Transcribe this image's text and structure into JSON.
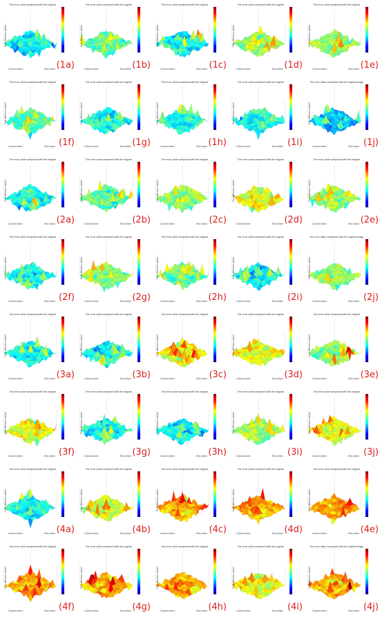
{
  "chart_data": {
    "type": "surface-grid",
    "colors": {
      "low": "#0000c8",
      "mid": "#7fff00",
      "high": "#e00000"
    },
    "panels": [
      {
        "label": "(1a)",
        "title": "The error value compared with the original",
        "xlabel": "Column index",
        "ylabel": "Row index",
        "zlabel": "Pixel difference values",
        "style": "cyan"
      },
      {
        "label": "(1b)",
        "title": "The error value compared with the original",
        "xlabel": "Column index",
        "ylabel": "Row index",
        "zlabel": "Pixel difference values",
        "style": "mixed"
      },
      {
        "label": "(1c)",
        "title": "The error value compared with the original",
        "xlabel": "Column index",
        "ylabel": "Row index",
        "zlabel": "Pixel difference values",
        "style": "cyan"
      },
      {
        "label": "(1d)",
        "title": "The error value compared with the original",
        "xlabel": "Column index",
        "ylabel": "Row index",
        "zlabel": "Pixel difference values",
        "style": "green"
      },
      {
        "label": "(1e)",
        "title": "The error value compared with the original",
        "xlabel": "Column index",
        "ylabel": "Row index",
        "zlabel": "Pixel difference values",
        "style": "green"
      },
      {
        "label": "(1f)",
        "title": "The error value compared with the original",
        "xlabel": "Column index",
        "ylabel": "Row index",
        "zlabel": "Pixel difference values",
        "style": "mixed"
      },
      {
        "label": "(1g)",
        "title": "The error value compared with the original",
        "xlabel": "Column index",
        "ylabel": "Row index",
        "zlabel": "Pixel difference values",
        "style": "cyan"
      },
      {
        "label": "(1h)",
        "title": "The error value compared with the original",
        "xlabel": "Column index",
        "ylabel": "Row index",
        "zlabel": "Pixel difference values",
        "style": "cyan"
      },
      {
        "label": "(1i)",
        "title": "The error value compared with the original",
        "xlabel": "Column index",
        "ylabel": "Row index",
        "zlabel": "Pixel difference values",
        "style": "cyan"
      },
      {
        "label": "(1j)",
        "title": "The error value compared with the original image",
        "xlabel": "Column index",
        "ylabel": "Row index",
        "zlabel": "Pixel difference values",
        "style": "blue"
      },
      {
        "label": "(2a)",
        "title": "The error value compared with the original",
        "xlabel": "Column index",
        "ylabel": "Row index",
        "zlabel": "Pixel difference values",
        "style": "cyan"
      },
      {
        "label": "(2b)",
        "title": "The error value compared with the original",
        "xlabel": "Column index",
        "ylabel": "Row index",
        "zlabel": "Pixel difference values",
        "style": "mixed"
      },
      {
        "label": "(2c)",
        "title": "The error value compared with the original",
        "xlabel": "Column index",
        "ylabel": "Row index",
        "zlabel": "Pixel difference values",
        "style": "green"
      },
      {
        "label": "(2d)",
        "title": "The error value compared with the original",
        "xlabel": "Column index",
        "ylabel": "Row index",
        "zlabel": "Pixel difference values",
        "style": "yellow"
      },
      {
        "label": "(2e)",
        "title": "The error value compared with the original",
        "xlabel": "Column index",
        "ylabel": "Row index",
        "zlabel": "Pixel difference values",
        "style": "green"
      },
      {
        "label": "(2f)",
        "title": "The error value compared with the original",
        "xlabel": "Column index",
        "ylabel": "Row index",
        "zlabel": "Pixel difference values",
        "style": "cyan"
      },
      {
        "label": "(2g)",
        "title": "The error value compared with the original",
        "xlabel": "Column index",
        "ylabel": "Row index",
        "zlabel": "Pixel difference values",
        "style": "green"
      },
      {
        "label": "(2h)",
        "title": "The error value compared with the original",
        "xlabel": "Column index",
        "ylabel": "Row index",
        "zlabel": "Pixel difference values",
        "style": "mixed"
      },
      {
        "label": "(2i)",
        "title": "The error value compared with the original",
        "xlabel": "Column index",
        "ylabel": "Row index",
        "zlabel": "Pixel difference values",
        "style": "cyan"
      },
      {
        "label": "(2j)",
        "title": "The error value compared with the original image",
        "xlabel": "Column index",
        "ylabel": "Row index",
        "zlabel": "Pixel difference values",
        "style": "green"
      },
      {
        "label": "(3a)",
        "title": "The error value compared with the original",
        "xlabel": "Column index",
        "ylabel": "Row index",
        "zlabel": "Pixel difference values",
        "style": "cyan"
      },
      {
        "label": "(3b)",
        "title": "The error value compared with the original",
        "xlabel": "Column index",
        "ylabel": "Row index",
        "zlabel": "Pixel difference values",
        "style": "cyan"
      },
      {
        "label": "(3c)",
        "title": "The error value compared with the original",
        "xlabel": "Column index",
        "ylabel": "Row index",
        "zlabel": "Pixel difference values",
        "style": "yellow"
      },
      {
        "label": "(3d)",
        "title": "The error value compared with the original",
        "xlabel": "Column index",
        "ylabel": "Row index",
        "zlabel": "Pixel difference values",
        "style": "yellow"
      },
      {
        "label": "(3e)",
        "title": "The error value compared with the original",
        "xlabel": "Column index",
        "ylabel": "Row index",
        "zlabel": "Pixel difference values",
        "style": "green"
      },
      {
        "label": "(3f)",
        "title": "The error value compared with the original",
        "xlabel": "Column index",
        "ylabel": "Row index",
        "zlabel": "Pixel difference values",
        "style": "yellow"
      },
      {
        "label": "(3g)",
        "title": "The error value compared with the original",
        "xlabel": "Column index",
        "ylabel": "Row index",
        "zlabel": "Pixel difference values",
        "style": "cyan"
      },
      {
        "label": "(3h)",
        "title": "The error value compared with the original",
        "xlabel": "Column index",
        "ylabel": "Row index",
        "zlabel": "Pixel difference values",
        "style": "cyan"
      },
      {
        "label": "(3i)",
        "title": "The error value compared with the original",
        "xlabel": "Column index",
        "ylabel": "Row index",
        "zlabel": "Pixel difference values",
        "style": "green"
      },
      {
        "label": "(3j)",
        "title": "The error value compared with the original",
        "xlabel": "Column index",
        "ylabel": "Row index",
        "zlabel": "Pixel difference values",
        "style": "yellow"
      },
      {
        "label": "(4a)",
        "title": "The error value compared with the original",
        "xlabel": "Column index",
        "ylabel": "Row index",
        "zlabel": "Pixel difference values",
        "style": "cyan"
      },
      {
        "label": "(4b)",
        "title": "The error value compared with the original",
        "xlabel": "Column index",
        "ylabel": "Row index",
        "zlabel": "Pixel difference values",
        "style": "yellow"
      },
      {
        "label": "(4c)",
        "title": "The error value compared with the original",
        "xlabel": "Column index",
        "ylabel": "Row index",
        "zlabel": "Pixel difference values",
        "style": "orange"
      },
      {
        "label": "(4d)",
        "title": "The error value compared with the original",
        "xlabel": "Column index",
        "ylabel": "Row index",
        "zlabel": "Pixel difference values",
        "style": "orange"
      },
      {
        "label": "(4e)",
        "title": "The error value compared with the original",
        "xlabel": "Column index",
        "ylabel": "Row index",
        "zlabel": "Pixel difference values",
        "style": "orange"
      },
      {
        "label": "(4f)",
        "title": "The error value compared with the original",
        "xlabel": "Column index",
        "ylabel": "Row index",
        "zlabel": "Pixel difference values",
        "style": "orange"
      },
      {
        "label": "(4g)",
        "title": "The error value compared with the original",
        "xlabel": "Column index",
        "ylabel": "Row index",
        "zlabel": "Pixel difference values",
        "style": "orange"
      },
      {
        "label": "(4h)",
        "title": "The error value compared with the original",
        "xlabel": "Column index",
        "ylabel": "Row index",
        "zlabel": "Pixel difference values",
        "style": "orange"
      },
      {
        "label": "(4i)",
        "title": "The error value compared with the original",
        "xlabel": "Column index",
        "ylabel": "Row index",
        "zlabel": "Pixel difference values",
        "style": "yellow"
      },
      {
        "label": "(4j)",
        "title": "The error value compared with the original image",
        "xlabel": "Column index",
        "ylabel": "Row index",
        "zlabel": "Pixel difference values",
        "style": "orange"
      }
    ]
  }
}
